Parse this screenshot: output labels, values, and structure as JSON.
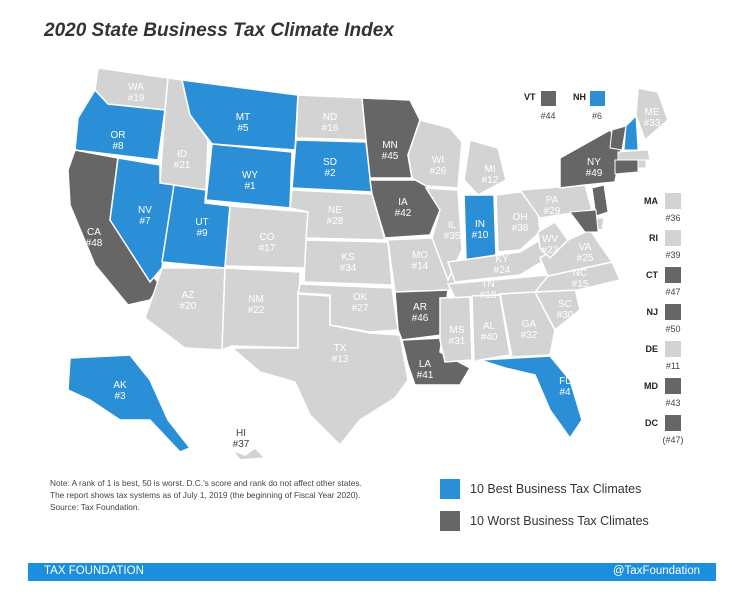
{
  "title": "2020 State Business Tax Climate Index",
  "colors": {
    "best": "#2b8fd8",
    "worst": "#666666",
    "other": "#d3d3d3",
    "footer": "#1a8fe0"
  },
  "states": [
    {
      "abbr": "WA",
      "rank": "#19",
      "cat": "other"
    },
    {
      "abbr": "OR",
      "rank": "#8",
      "cat": "best"
    },
    {
      "abbr": "CA",
      "rank": "#48",
      "cat": "worst"
    },
    {
      "abbr": "ID",
      "rank": "#21",
      "cat": "other"
    },
    {
      "abbr": "NV",
      "rank": "#7",
      "cat": "best"
    },
    {
      "abbr": "MT",
      "rank": "#5",
      "cat": "best"
    },
    {
      "abbr": "WY",
      "rank": "#1",
      "cat": "best"
    },
    {
      "abbr": "UT",
      "rank": "#9",
      "cat": "best"
    },
    {
      "abbr": "AZ",
      "rank": "#20",
      "cat": "other"
    },
    {
      "abbr": "CO",
      "rank": "#17",
      "cat": "other"
    },
    {
      "abbr": "NM",
      "rank": "#22",
      "cat": "other"
    },
    {
      "abbr": "ND",
      "rank": "#16",
      "cat": "other"
    },
    {
      "abbr": "SD",
      "rank": "#2",
      "cat": "best"
    },
    {
      "abbr": "NE",
      "rank": "#28",
      "cat": "other"
    },
    {
      "abbr": "KS",
      "rank": "#34",
      "cat": "other"
    },
    {
      "abbr": "OK",
      "rank": "#27",
      "cat": "other"
    },
    {
      "abbr": "TX",
      "rank": "#13",
      "cat": "other"
    },
    {
      "abbr": "MN",
      "rank": "#45",
      "cat": "worst"
    },
    {
      "abbr": "IA",
      "rank": "#42",
      "cat": "worst"
    },
    {
      "abbr": "MO",
      "rank": "#14",
      "cat": "other"
    },
    {
      "abbr": "AR",
      "rank": "#46",
      "cat": "worst"
    },
    {
      "abbr": "LA",
      "rank": "#41",
      "cat": "worst"
    },
    {
      "abbr": "WI",
      "rank": "#26",
      "cat": "other"
    },
    {
      "abbr": "IL",
      "rank": "#35",
      "cat": "other"
    },
    {
      "abbr": "MI",
      "rank": "#12",
      "cat": "other"
    },
    {
      "abbr": "IN",
      "rank": "#10",
      "cat": "best"
    },
    {
      "abbr": "OH",
      "rank": "#38",
      "cat": "other"
    },
    {
      "abbr": "KY",
      "rank": "#24",
      "cat": "other"
    },
    {
      "abbr": "TN",
      "rank": "#18",
      "cat": "other"
    },
    {
      "abbr": "MS",
      "rank": "#31",
      "cat": "other"
    },
    {
      "abbr": "AL",
      "rank": "#40",
      "cat": "other"
    },
    {
      "abbr": "GA",
      "rank": "#32",
      "cat": "other"
    },
    {
      "abbr": "FL",
      "rank": "#4",
      "cat": "best"
    },
    {
      "abbr": "SC",
      "rank": "#30",
      "cat": "other"
    },
    {
      "abbr": "NC",
      "rank": "#15",
      "cat": "other"
    },
    {
      "abbr": "VA",
      "rank": "#25",
      "cat": "other"
    },
    {
      "abbr": "WV",
      "rank": "#23",
      "cat": "other"
    },
    {
      "abbr": "PA",
      "rank": "#29",
      "cat": "other"
    },
    {
      "abbr": "NY",
      "rank": "#49",
      "cat": "worst"
    },
    {
      "abbr": "ME",
      "rank": "#33",
      "cat": "other"
    },
    {
      "abbr": "AK",
      "rank": "#3",
      "cat": "best"
    },
    {
      "abbr": "HI",
      "rank": "#37",
      "cat": "other"
    }
  ],
  "callouts": [
    {
      "abbr": "VT",
      "rank": "#44",
      "cat": "worst"
    },
    {
      "abbr": "NH",
      "rank": "#6",
      "cat": "best"
    }
  ],
  "side_list": [
    {
      "abbr": "MA",
      "rank": "#36",
      "cat": "other"
    },
    {
      "abbr": "RI",
      "rank": "#39",
      "cat": "other"
    },
    {
      "abbr": "CT",
      "rank": "#47",
      "cat": "worst"
    },
    {
      "abbr": "NJ",
      "rank": "#50",
      "cat": "worst"
    },
    {
      "abbr": "DE",
      "rank": "#11",
      "cat": "other"
    },
    {
      "abbr": "MD",
      "rank": "#43",
      "cat": "worst"
    },
    {
      "abbr": "DC",
      "rank": "(#47)",
      "cat": "worst"
    }
  ],
  "note": {
    "line1": "Note: A rank of 1 is best, 50 is worst. D.C.'s score and rank do not affect other states.",
    "line2": "The report shows tax systems as of July 1, 2019 (the beginning of Fiscal Year 2020).",
    "line3": "Source: Tax Foundation."
  },
  "legend": {
    "best": "10 Best Business Tax Climates",
    "worst": "10 Worst Business Tax Climates"
  },
  "footer": {
    "left": "TAX FOUNDATION",
    "right": "@TaxFoundation"
  }
}
